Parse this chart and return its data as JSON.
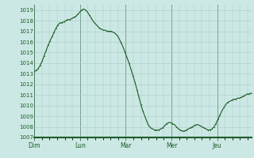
{
  "background_color": "#cce8e4",
  "grid_color": "#aac8c4",
  "line_color": "#1a5c28",
  "line_width": 0.9,
  "ylim": [
    1007,
    1019.5
  ],
  "ytick_min": 1007,
  "ytick_max": 1019,
  "xlabel_color": "#1a5c28",
  "day_labels": [
    "Dim",
    "Lun",
    "Mar",
    "Mer",
    "Jeu"
  ],
  "day_positions": [
    0,
    0.2,
    0.4,
    0.6,
    0.8
  ],
  "total_hours": 114,
  "pressure_data": [
    1013.2,
    1013.3,
    1013.5,
    1013.8,
    1014.2,
    1014.7,
    1015.2,
    1015.7,
    1016.1,
    1016.5,
    1016.9,
    1017.3,
    1017.6,
    1017.8,
    1017.8,
    1017.9,
    1018.0,
    1018.1,
    1018.1,
    1018.2,
    1018.3,
    1018.4,
    1018.6,
    1018.8,
    1019.0,
    1019.1,
    1019.0,
    1018.8,
    1018.5,
    1018.2,
    1017.9,
    1017.7,
    1017.5,
    1017.3,
    1017.2,
    1017.1,
    1017.1,
    1017.0,
    1017.0,
    1017.0,
    1016.9,
    1016.8,
    1016.6,
    1016.3,
    1015.9,
    1015.5,
    1015.0,
    1014.5,
    1014.0,
    1013.4,
    1012.8,
    1012.2,
    1011.5,
    1010.8,
    1010.1,
    1009.5,
    1009.0,
    1008.5,
    1008.1,
    1007.9,
    1007.8,
    1007.7,
    1007.7,
    1007.7,
    1007.8,
    1007.9,
    1008.1,
    1008.3,
    1008.4,
    1008.4,
    1008.3,
    1008.2,
    1008.0,
    1007.8,
    1007.7,
    1007.6,
    1007.6,
    1007.7,
    1007.8,
    1007.9,
    1008.0,
    1008.1,
    1008.2,
    1008.2,
    1008.1,
    1008.0,
    1007.9,
    1007.8,
    1007.7,
    1007.7,
    1007.8,
    1008.0,
    1008.3,
    1008.7,
    1009.1,
    1009.5,
    1009.8,
    1010.1,
    1010.3,
    1010.4,
    1010.5,
    1010.6,
    1010.6,
    1010.7,
    1010.7,
    1010.8,
    1010.9,
    1011.0,
    1011.1,
    1011.1,
    1011.2
  ]
}
